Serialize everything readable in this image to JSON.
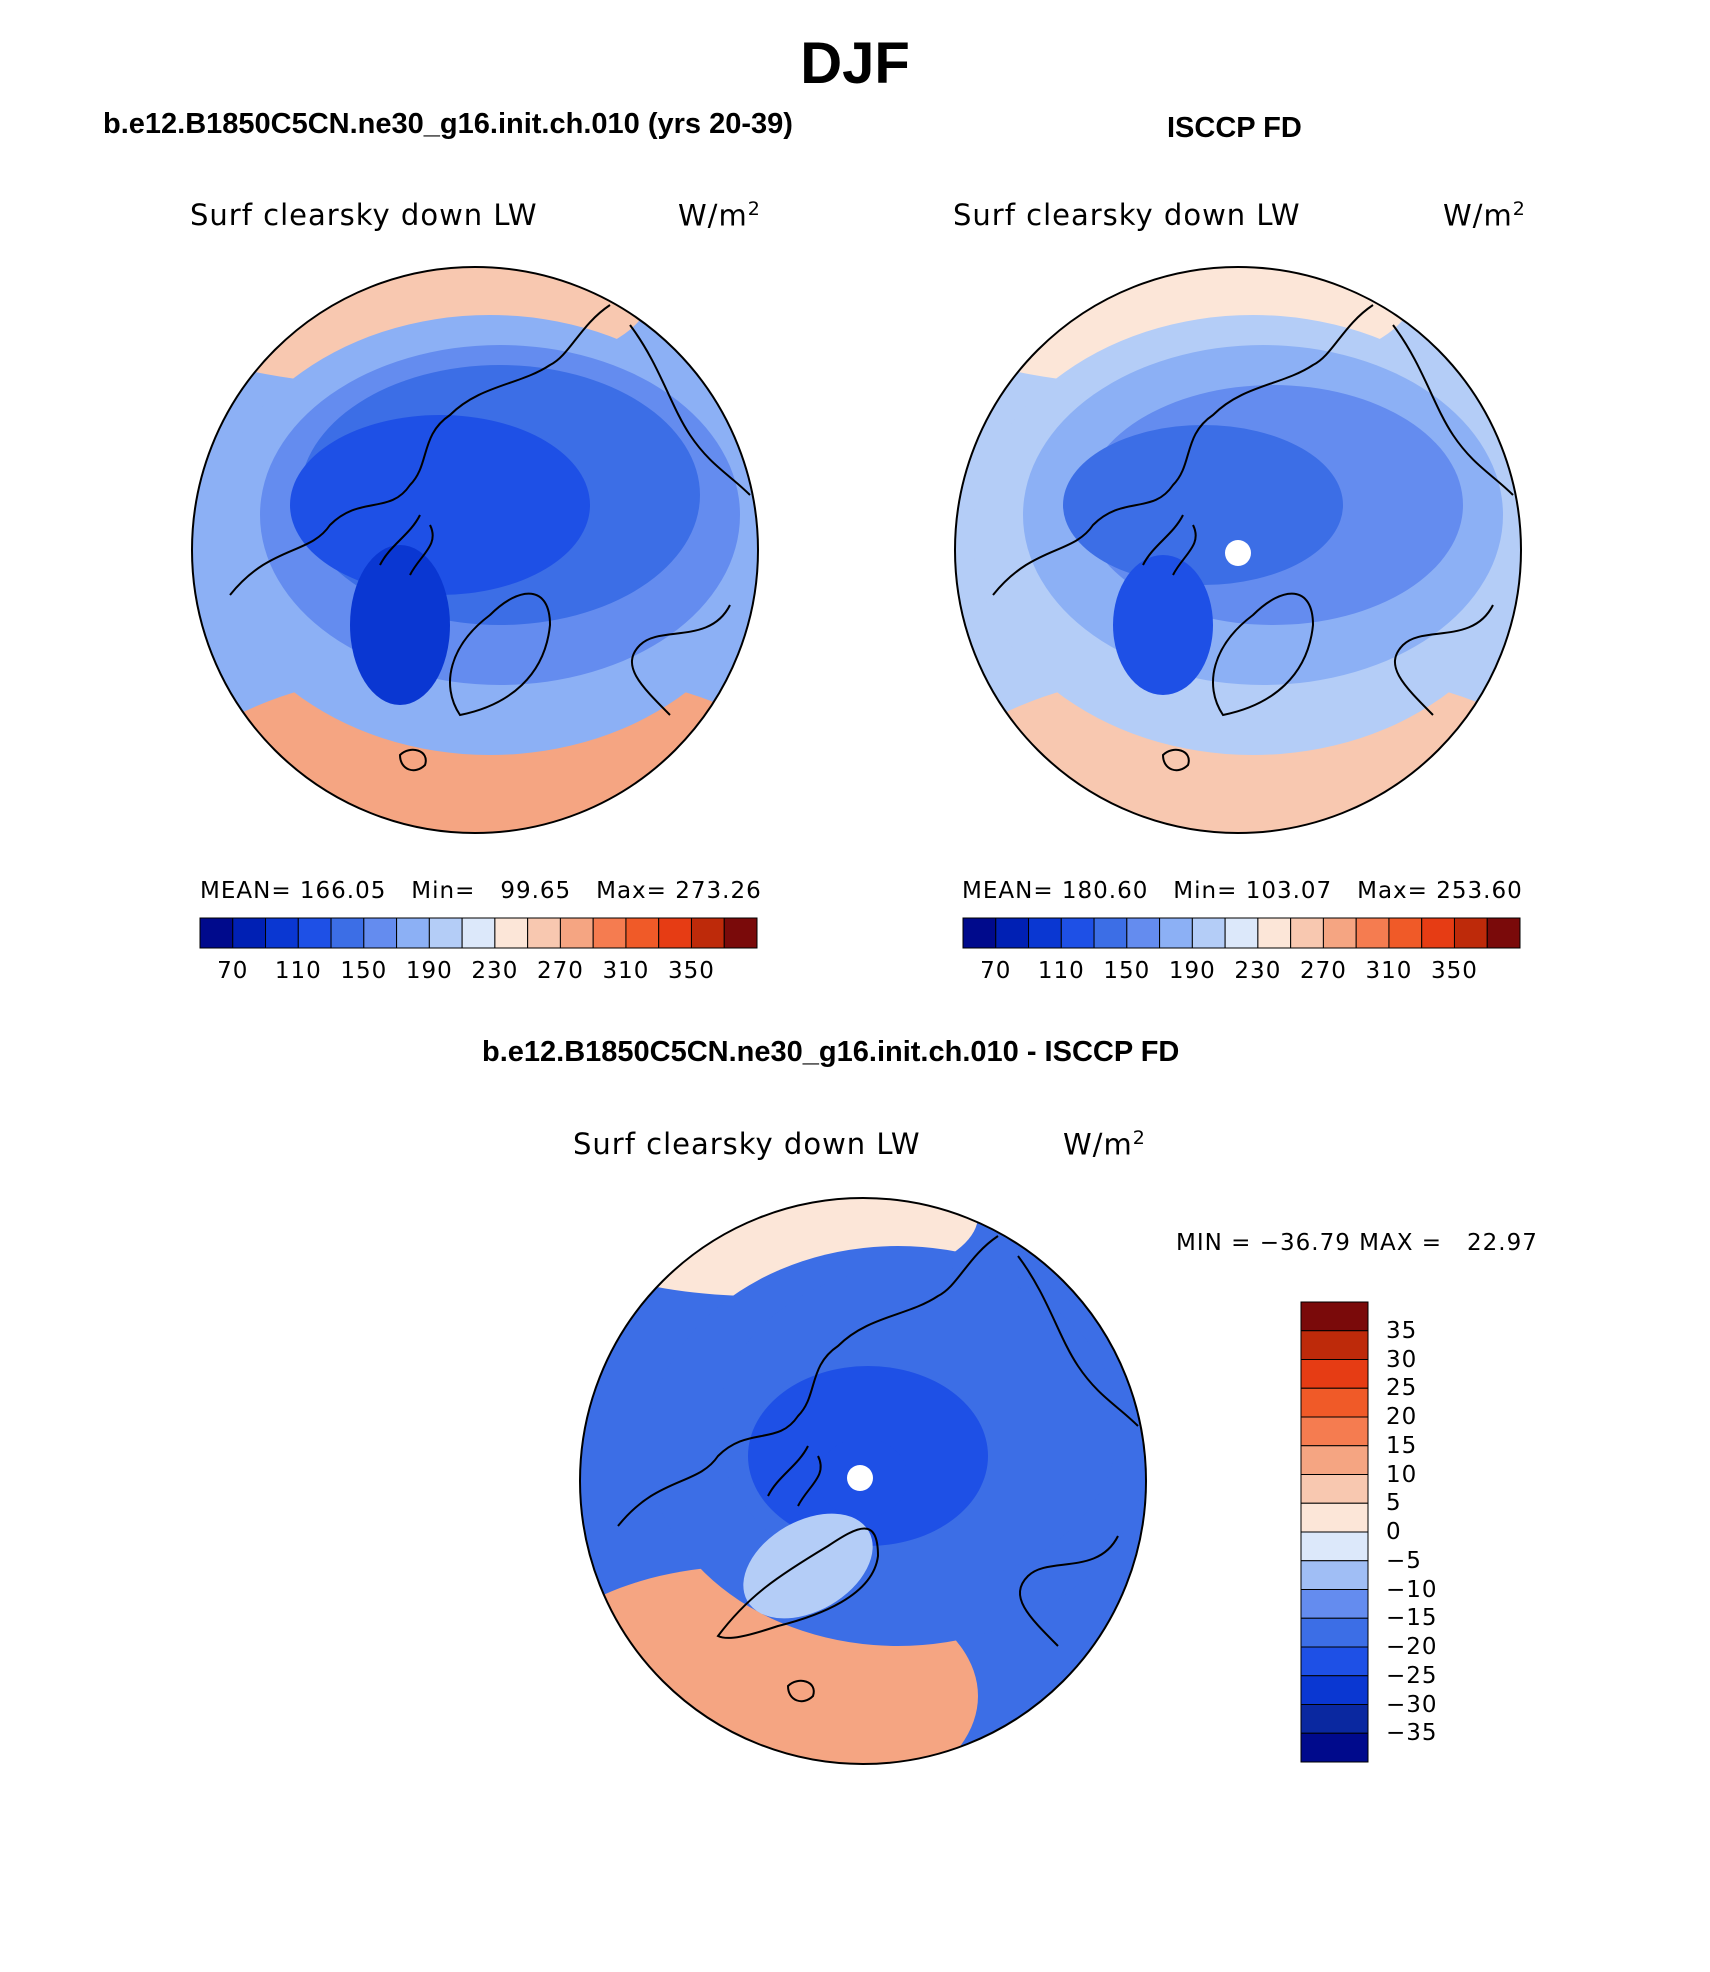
{
  "title": "DJF",
  "season": "DJF",
  "panels": {
    "model": {
      "case_title": "b.e12.B1850C5CN.ne30_g16.init.ch.010 (yrs 20-39)",
      "variable": "Surf clearsky down LW",
      "units_base": "W/m",
      "units_exp": "2",
      "stats": "MEAN= 166.05   Min=   99.65   Max= 273.26",
      "mean": 166.05,
      "min": 99.65,
      "max": 273.26
    },
    "obs": {
      "case_title": "ISCCP FD",
      "variable": "Surf clearsky down LW",
      "units_base": "W/m",
      "units_exp": "2",
      "stats": "MEAN= 180.60   Min= 103.07   Max= 253.60",
      "mean": 180.6,
      "min": 103.07,
      "max": 253.6
    },
    "diff": {
      "case_title": "b.e12.B1850C5CN.ne30_g16.init.ch.010 - ISCCP FD",
      "variable": "Surf clearsky down LW",
      "units_base": "W/m",
      "units_exp": "2",
      "stats": "MIN = −36.79 MAX =   22.97",
      "min": -36.79,
      "max": 22.97
    }
  },
  "abs_colorbar": {
    "colors": [
      "#000a8c",
      "#0020b4",
      "#0a37d2",
      "#1e50e6",
      "#3c6ee6",
      "#648cef",
      "#8cb0f5",
      "#b4cdf7",
      "#dce8fa",
      "#fce6d8",
      "#f8c8b0",
      "#f5a582",
      "#f57c50",
      "#f05a28",
      "#e63c14",
      "#be2a0a",
      "#7a0a0a"
    ],
    "tick_labels": [
      "70",
      "110",
      "150",
      "190",
      "230",
      "270",
      "310",
      "350"
    ]
  },
  "diff_colorbar": {
    "colors": [
      "#000a8c",
      "#0a28a0",
      "#0a37d2",
      "#1e50e6",
      "#3c6ee6",
      "#648cef",
      "#a0bef5",
      "#dce8fa",
      "#fce6d8",
      "#f8c8b0",
      "#f5a582",
      "#f57c50",
      "#f05a28",
      "#e63c14",
      "#be2a0a",
      "#7a0a0a"
    ],
    "tick_labels": [
      "35",
      "30",
      "25",
      "20",
      "15",
      "10",
      "5",
      "0",
      "−5",
      "−10",
      "−15",
      "−20",
      "−25",
      "−30",
      "−35"
    ]
  },
  "map_fields": {
    "model": {
      "pole": "#1e50e6",
      "ring1": "#3c6ee6",
      "ring2": "#648cef",
      "ring3": "#8cb0f5",
      "atlantic": "#f5a582",
      "pacific": "#f8c8b0",
      "greenland": "#0a37d2"
    },
    "obs": {
      "pole": "#3c6ee6",
      "ring1": "#648cef",
      "ring2": "#8cb0f5",
      "ring3": "#b4cdf7",
      "atlantic": "#f8c8b0",
      "pacific": "#fce6d8",
      "greenland": "#1e50e6"
    },
    "diff": {
      "pole": "#1e50e6",
      "ring1": "#1e50e6",
      "ring2": "#3c6ee6",
      "ring3": "#3c6ee6",
      "atlantic": "#f5a582",
      "pacific": "#fce6d8",
      "greenland": "#b4cdf7"
    }
  }
}
